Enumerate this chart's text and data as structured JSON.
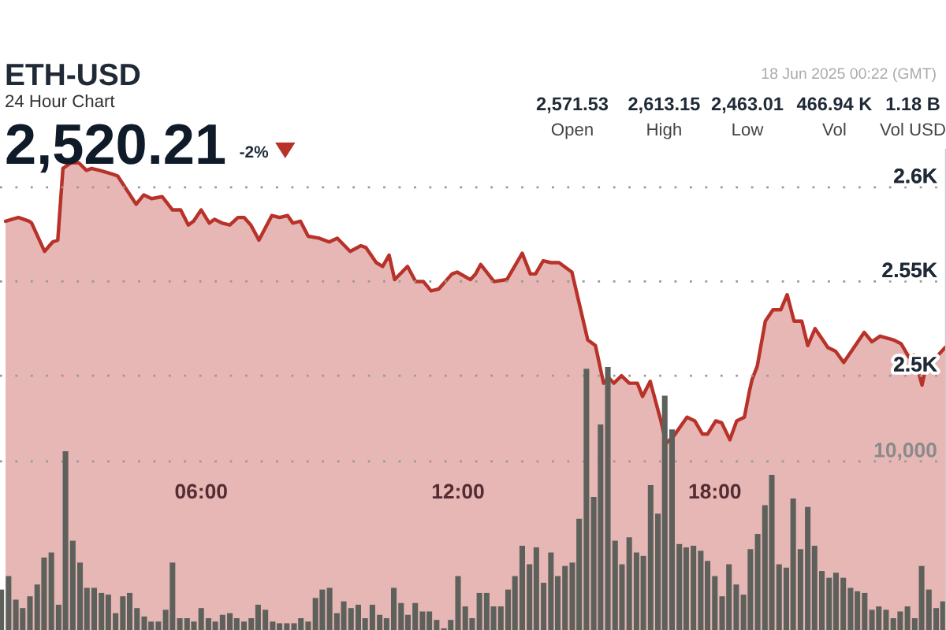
{
  "chart_data": {
    "type": "area",
    "title": "ETH-USD",
    "subtitle": "24 Hour Chart",
    "annotations": [
      "2,520.21",
      "-2%",
      "2,571.53",
      "Open",
      "2,613.15",
      "High",
      "2,463.01",
      "Low",
      "466.94 K",
      "Vol",
      "1.18 B",
      "Vol USD",
      "18 Jun 2025 00:22 (GMT)"
    ],
    "xlim": [
      1.3,
      23.4
    ],
    "xticks": [
      {
        "value": 6,
        "label": "06:00"
      },
      {
        "value": 12,
        "label": "12:00"
      },
      {
        "value": 18,
        "label": "18:00"
      }
    ],
    "ylim": [
      2365,
      2620
    ],
    "yticks": [
      {
        "value": 2600,
        "label": "2.6K"
      },
      {
        "value": 2550,
        "label": "2.55K"
      },
      {
        "value": 2500,
        "label": "2.5K"
      }
    ],
    "y2lim": [
      0,
      28500
    ],
    "y2ticks": [
      {
        "value": 10000,
        "label": "10,000"
      }
    ],
    "grid": "y",
    "legend": false,
    "series": [
      {
        "type": "bar",
        "axis": "y2",
        "color": "#5e615b",
        "x": [
          1.33,
          1.5,
          1.67,
          1.83,
          2,
          2.17,
          2.33,
          2.5,
          2.67,
          2.83,
          3,
          3.17,
          3.33,
          3.5,
          3.67,
          3.83,
          4,
          4.17,
          4.33,
          4.5,
          4.67,
          4.83,
          5,
          5.17,
          5.33,
          5.5,
          5.67,
          5.83,
          6,
          6.17,
          6.33,
          6.5,
          6.67,
          6.83,
          7,
          7.17,
          7.33,
          7.5,
          7.67,
          7.83,
          8,
          8.17,
          8.33,
          8.5,
          8.67,
          8.83,
          9,
          9.17,
          9.33,
          9.5,
          9.67,
          9.83,
          10,
          10.17,
          10.33,
          10.5,
          10.67,
          10.83,
          11,
          11.17,
          11.33,
          11.5,
          11.67,
          11.83,
          12,
          12.17,
          12.33,
          12.5,
          12.67,
          12.83,
          13,
          13.17,
          13.33,
          13.5,
          13.67,
          13.83,
          14,
          14.17,
          14.33,
          14.5,
          14.67,
          14.83,
          15,
          15.17,
          15.33,
          15.5,
          15.67,
          15.83,
          16,
          16.17,
          16.33,
          16.5,
          16.67,
          16.83,
          17,
          17.17,
          17.33,
          17.5,
          17.67,
          17.83,
          18,
          18.17,
          18.33,
          18.5,
          18.67,
          18.83,
          19,
          19.17,
          19.33,
          19.5,
          19.67,
          19.83,
          20,
          20.17,
          20.33,
          20.5,
          20.67,
          20.83,
          21,
          21.17,
          21.33,
          21.5,
          21.67,
          21.83,
          22,
          22.17,
          22.33,
          22.5,
          22.67,
          22.83,
          23,
          23.17,
          23.33
        ],
        "values": [
          2400,
          3200,
          1800,
          1300,
          2000,
          2700,
          4300,
          4600,
          1500,
          10600,
          5300,
          4000,
          2500,
          2500,
          2200,
          2100,
          1000,
          2000,
          2200,
          1300,
          800,
          500,
          500,
          1200,
          4000,
          700,
          700,
          500,
          1300,
          700,
          500,
          900,
          1000,
          700,
          500,
          700,
          1500,
          1200,
          500,
          400,
          400,
          400,
          700,
          500,
          1900,
          2400,
          2500,
          1000,
          1700,
          1300,
          1500,
          700,
          1500,
          900,
          700,
          2500,
          1600,
          900,
          1600,
          1100,
          1100,
          600,
          100,
          600,
          3200,
          1400,
          700,
          2200,
          2200,
          1400,
          1400,
          2400,
          3200,
          5000,
          3900,
          4900,
          2800,
          4600,
          3200,
          3800,
          4000,
          6600,
          15500,
          7900,
          12200,
          15600,
          5300,
          3900,
          5500,
          4600,
          4400,
          8600,
          6900,
          13900,
          11900,
          5100,
          4900,
          5000,
          4700,
          4100,
          3200,
          2000,
          3900,
          2700,
          2100,
          4800,
          5700,
          7400,
          9200,
          3900,
          3700,
          7800,
          4800,
          7300,
          5000,
          3500,
          3100,
          3400,
          3100,
          2500,
          2300,
          2200,
          1200,
          1400,
          1200,
          700,
          1100,
          1400,
          700,
          3800,
          2400,
          1300,
          1700
        ]
      },
      {
        "axis": "y",
        "color": "#b8322a",
        "x": [
          1.43,
          1.73,
          1.98,
          2.04,
          2.34,
          2.53,
          2.65,
          2.77,
          2.96,
          3.14,
          3.32,
          3.44,
          3.63,
          3.93,
          4.05,
          4.48,
          4.66,
          4.84,
          5.09,
          5.33,
          5.52,
          5.7,
          5.82,
          6,
          6.19,
          6.31,
          6.49,
          6.67,
          6.86,
          7,
          7.16,
          7.35,
          7.65,
          7.83,
          8.02,
          8.14,
          8.32,
          8.5,
          8.75,
          8.99,
          9.18,
          9.48,
          9.73,
          9.85,
          10.09,
          10.24,
          10.39,
          10.52,
          10.82,
          11.01,
          11.19,
          11.37,
          11.55,
          11.86,
          11.98,
          12.29,
          12.41,
          12.53,
          12.84,
          13.14,
          13.5,
          13.69,
          13.81,
          13.99,
          14.17,
          14.36,
          14.66,
          15.03,
          15.21,
          15.4,
          15.52,
          15.64,
          15.82,
          16,
          16.19,
          16.31,
          16.49,
          16.74,
          16.86,
          17.04,
          17.35,
          17.53,
          17.71,
          17.83,
          18.02,
          18.16,
          18.35,
          18.51,
          18.69,
          18.81,
          18.87,
          18.99,
          19.18,
          19.36,
          19.54,
          19.69,
          19.85,
          20.03,
          20.17,
          20.34,
          20.52,
          20.64,
          20.82,
          21.01,
          21.25,
          21.49,
          21.67,
          21.86,
          22.17,
          22.35,
          22.53,
          22.65,
          22.84,
          22.96,
          23.14,
          23.38
        ],
        "values": [
          2582,
          2584,
          2582,
          2581,
          2566,
          2571,
          2572,
          2610,
          2613,
          2613,
          2609,
          2610,
          2609,
          2607,
          2606,
          2591,
          2596,
          2594,
          2595,
          2588,
          2588,
          2580,
          2582,
          2588,
          2581,
          2583,
          2581,
          2580,
          2584,
          2584,
          2580,
          2572,
          2585,
          2584,
          2585,
          2581,
          2582,
          2574,
          2573,
          2571,
          2573,
          2566,
          2569,
          2568,
          2560,
          2558,
          2564,
          2551,
          2558,
          2550,
          2550,
          2545,
          2546,
          2554,
          2555,
          2551,
          2554,
          2559,
          2550,
          2551,
          2565,
          2554,
          2554,
          2561,
          2560,
          2560,
          2555,
          2519,
          2516,
          2496,
          2499,
          2496,
          2500,
          2496,
          2496,
          2489,
          2497,
          2476,
          2464,
          2468,
          2478,
          2476,
          2469,
          2469,
          2476,
          2475,
          2466,
          2476,
          2478,
          2492,
          2498,
          2505,
          2529,
          2535,
          2535,
          2543,
          2529,
          2529,
          2516,
          2525,
          2519,
          2515,
          2513,
          2507,
          2515,
          2523,
          2518,
          2521,
          2519,
          2517,
          2510,
          2511,
          2495,
          2508,
          2509,
          2515
        ]
      }
    ]
  }
}
